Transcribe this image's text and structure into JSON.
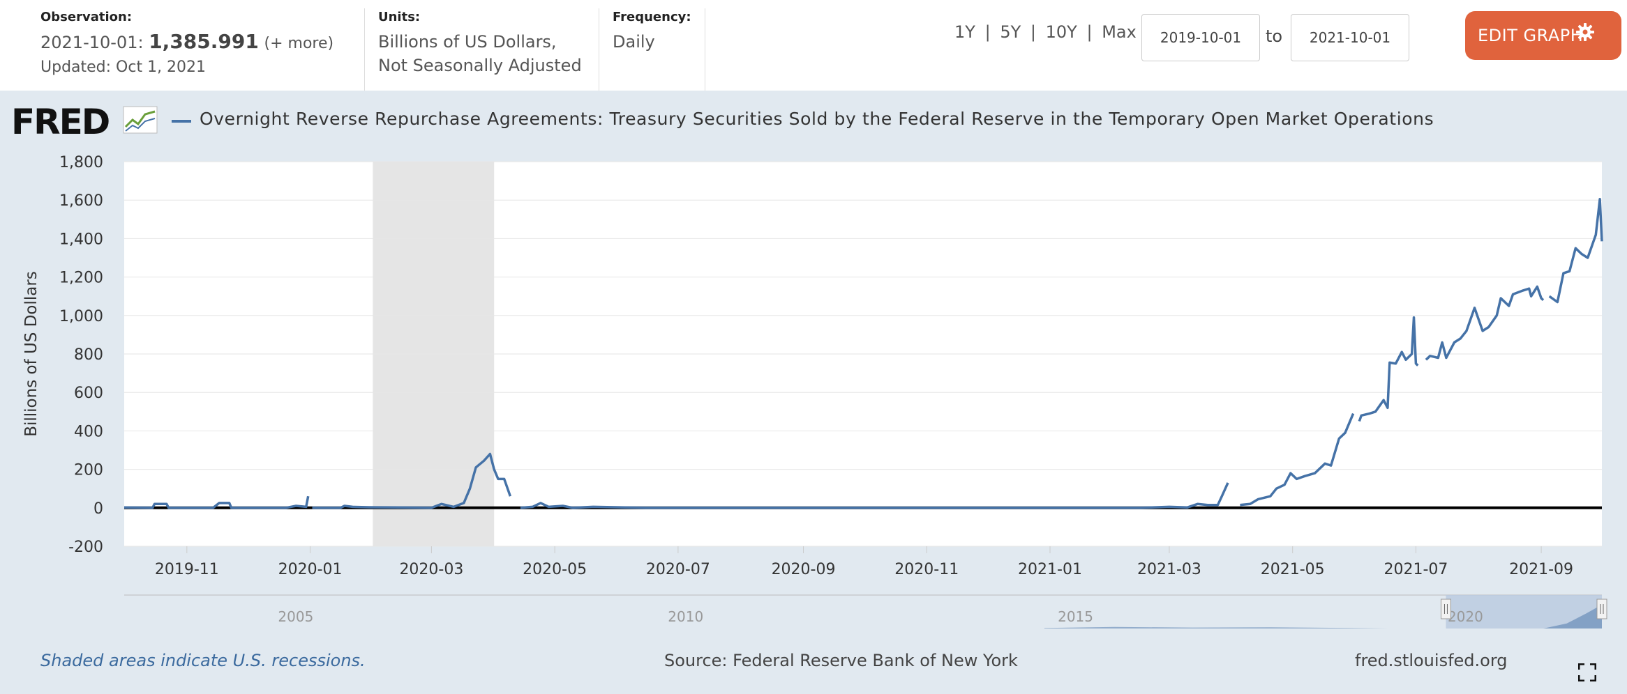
{
  "header": {
    "observation_label": "Observation:",
    "observation_date": "2021-10-01:",
    "observation_value": "1,385.991",
    "observation_more": "(+ more)",
    "updated": "Updated: Oct 1, 2021",
    "units_label": "Units:",
    "units_line1": "Billions of US Dollars,",
    "units_line2": "Not Seasonally Adjusted",
    "frequency_label": "Frequency:",
    "frequency_value": "Daily",
    "range_1y": "1Y",
    "range_5y": "5Y",
    "range_10y": "10Y",
    "range_max": "Max",
    "range_sep": "|",
    "date_from": "2019-10-01",
    "date_to_label": "to",
    "date_to": "2021-10-01",
    "edit_button": "EDIT GRAPH",
    "edit_icon": "gear-icon"
  },
  "logo": {
    "text": "FRED",
    "icon": "chart-line-icon"
  },
  "colors": {
    "series": "#4572a7",
    "accent": "#e0633d",
    "recession": "#e5e5e5",
    "navigator_fill": "#b9c9e0"
  },
  "chart_data": {
    "type": "line",
    "title": "Overnight Reverse Repurchase Agreements: Treasury Securities Sold by the Federal Reserve in the Temporary Open Market Operations",
    "ylabel": "Billions of US Dollars",
    "ylim": [
      -200,
      1800
    ],
    "yticks": [
      "-200",
      "0",
      "200",
      "400",
      "600",
      "800",
      "1,000",
      "1,200",
      "1,400",
      "1,600",
      "1,800"
    ],
    "ytick_values": [
      -200,
      0,
      200,
      400,
      600,
      800,
      1000,
      1200,
      1400,
      1600,
      1800
    ],
    "xlim": [
      "2019-10-01",
      "2021-10-01"
    ],
    "xticks": [
      "2019-11",
      "2020-01",
      "2020-03",
      "2020-05",
      "2020-07",
      "2020-09",
      "2020-11",
      "2021-01",
      "2021-03",
      "2021-05",
      "2021-07",
      "2021-09"
    ],
    "recessions": [
      [
        "2020-02-01",
        "2020-04-01"
      ]
    ],
    "grid": true,
    "series": [
      {
        "points": [
          [
            "2019-10-01",
            2
          ],
          [
            "2019-10-15",
            0
          ],
          [
            "2019-10-16",
            20
          ],
          [
            "2019-10-22",
            20
          ],
          [
            "2019-10-23",
            0
          ],
          [
            "2019-11-14",
            0
          ],
          [
            "2019-11-17",
            25
          ],
          [
            "2019-11-22",
            25
          ],
          [
            "2019-11-23",
            0
          ],
          [
            "2019-12-20",
            0
          ],
          [
            "2019-12-25",
            10
          ],
          [
            "2019-12-30",
            5
          ],
          [
            "2019-12-31",
            60
          ],
          null,
          [
            "2020-01-02",
            0
          ],
          [
            "2020-01-16",
            0
          ],
          [
            "2020-01-18",
            10
          ],
          [
            "2020-01-22",
            5
          ],
          [
            "2020-01-30",
            3
          ],
          [
            "2020-02-14",
            2
          ],
          [
            "2020-03-01",
            0
          ],
          [
            "2020-03-06",
            20
          ],
          [
            "2020-03-12",
            5
          ],
          [
            "2020-03-17",
            25
          ],
          [
            "2020-03-20",
            100
          ],
          [
            "2020-03-23",
            210
          ],
          [
            "2020-03-27",
            245
          ],
          [
            "2020-03-30",
            280
          ],
          [
            "2020-04-01",
            200
          ],
          [
            "2020-04-03",
            150
          ],
          [
            "2020-04-06",
            150
          ],
          [
            "2020-04-09",
            60
          ],
          null,
          [
            "2020-04-14",
            0
          ],
          [
            "2020-04-20",
            5
          ],
          [
            "2020-04-24",
            25
          ],
          [
            "2020-04-28",
            5
          ],
          [
            "2020-05-05",
            10
          ],
          [
            "2020-05-10",
            0
          ],
          [
            "2020-05-20",
            5
          ],
          [
            "2020-06-15",
            0
          ],
          [
            "2020-09-01",
            0
          ],
          [
            "2020-12-01",
            0
          ],
          [
            "2021-01-15",
            0
          ],
          [
            "2021-02-15",
            0
          ],
          [
            "2021-03-01",
            5
          ],
          [
            "2021-03-10",
            2
          ],
          [
            "2021-03-15",
            20
          ],
          [
            "2021-03-20",
            15
          ],
          [
            "2021-03-25",
            15
          ],
          [
            "2021-03-27",
            60
          ],
          [
            "2021-03-30",
            130
          ],
          null,
          [
            "2021-04-05",
            15
          ],
          [
            "2021-04-10",
            20
          ],
          [
            "2021-04-14",
            45
          ],
          [
            "2021-04-20",
            60
          ],
          [
            "2021-04-23",
            100
          ],
          [
            "2021-04-27",
            120
          ],
          [
            "2021-04-30",
            180
          ],
          [
            "2021-05-03",
            150
          ],
          [
            "2021-05-07",
            165
          ],
          [
            "2021-05-12",
            180
          ],
          [
            "2021-05-17",
            230
          ],
          [
            "2021-05-20",
            220
          ],
          [
            "2021-05-24",
            360
          ],
          [
            "2021-05-27",
            390
          ],
          [
            "2021-05-31",
            490
          ],
          null,
          [
            "2021-06-03",
            450
          ],
          [
            "2021-06-04",
            480
          ],
          [
            "2021-06-08",
            490
          ],
          [
            "2021-06-11",
            500
          ],
          [
            "2021-06-15",
            560
          ],
          [
            "2021-06-17",
            520
          ],
          [
            "2021-06-18",
            755
          ],
          [
            "2021-06-21",
            750
          ],
          [
            "2021-06-24",
            810
          ],
          [
            "2021-06-26",
            770
          ],
          [
            "2021-06-29",
            800
          ],
          [
            "2021-06-30",
            990
          ],
          [
            "2021-07-01",
            750
          ],
          [
            "2021-07-02",
            740
          ],
          null,
          [
            "2021-07-06",
            770
          ],
          [
            "2021-07-08",
            790
          ],
          [
            "2021-07-12",
            780
          ],
          [
            "2021-07-14",
            860
          ],
          [
            "2021-07-16",
            780
          ],
          [
            "2021-07-20",
            860
          ],
          [
            "2021-07-23",
            880
          ],
          [
            "2021-07-26",
            920
          ],
          [
            "2021-07-30",
            1040
          ],
          [
            "2021-08-03",
            920
          ],
          [
            "2021-08-06",
            940
          ],
          [
            "2021-08-10",
            1000
          ],
          [
            "2021-08-12",
            1090
          ],
          [
            "2021-08-16",
            1050
          ],
          [
            "2021-08-18",
            1110
          ],
          [
            "2021-08-23",
            1130
          ],
          [
            "2021-08-26",
            1140
          ],
          [
            "2021-08-27",
            1100
          ],
          [
            "2021-08-30",
            1150
          ],
          [
            "2021-09-01",
            1090
          ],
          [
            "2021-09-02",
            1080
          ],
          null,
          [
            "2021-09-05",
            1100
          ],
          [
            "2021-09-09",
            1070
          ],
          [
            "2021-09-12",
            1220
          ],
          [
            "2021-09-15",
            1230
          ],
          [
            "2021-09-18",
            1350
          ],
          [
            "2021-09-21",
            1320
          ],
          [
            "2021-09-24",
            1300
          ],
          [
            "2021-09-28",
            1420
          ],
          [
            "2021-09-30",
            1605
          ],
          [
            "2021-10-01",
            1386
          ]
        ]
      }
    ],
    "navigator": {
      "labels": [
        "2005",
        "2010",
        "2015",
        "2020"
      ],
      "label_years": [
        2005,
        2010,
        2015,
        2020
      ],
      "range_years": [
        2002.8,
        2021.75
      ],
      "selected_years": [
        2019.75,
        2021.75
      ]
    }
  },
  "footer": {
    "recession_note": "Shaded areas indicate U.S. recessions.",
    "source": "Source: Federal Reserve Bank of New York",
    "site": "fred.stlouisfed.org",
    "fullscreen_icon": "fullscreen-icon"
  }
}
